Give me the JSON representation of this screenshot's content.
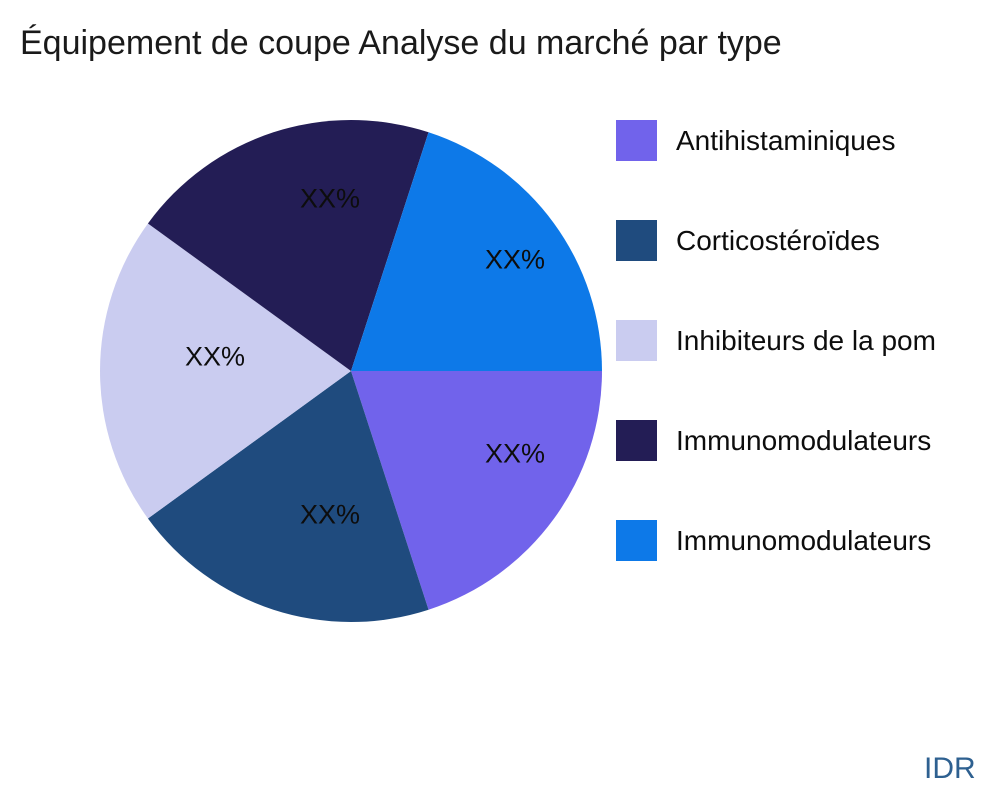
{
  "title": "Équipement de coupe Analyse du marché par type",
  "watermark": "IDR",
  "chart_data": {
    "type": "pie",
    "title": "Équipement de coupe Analyse du marché par type",
    "direction": "clockwise",
    "start_angle_deg": 0,
    "legend_position": "right",
    "values_are_placeholders": true,
    "slices": [
      {
        "label": "Antihistaminiques",
        "value": 20,
        "display_value": "XX%",
        "color": "#7163EB"
      },
      {
        "label": "Corticostéroïdes",
        "value": 20,
        "display_value": "XX%",
        "color": "#1F4B7E"
      },
      {
        "label": "Inhibiteurs de la pom",
        "value": 20,
        "display_value": "XX%",
        "color": "#CACCF0"
      },
      {
        "label": "Immunomodulateurs",
        "value": 20,
        "display_value": "XX%",
        "color": "#231D55"
      },
      {
        "label": "Immunomodulateurs",
        "value": 20,
        "display_value": "XX%",
        "color": "#0D79E8"
      }
    ],
    "colors": {
      "title_text": "#1A1A1A",
      "label_text": "#0D0D0D",
      "watermark_text": "#2E6090",
      "background": "#FFFFFF"
    }
  }
}
